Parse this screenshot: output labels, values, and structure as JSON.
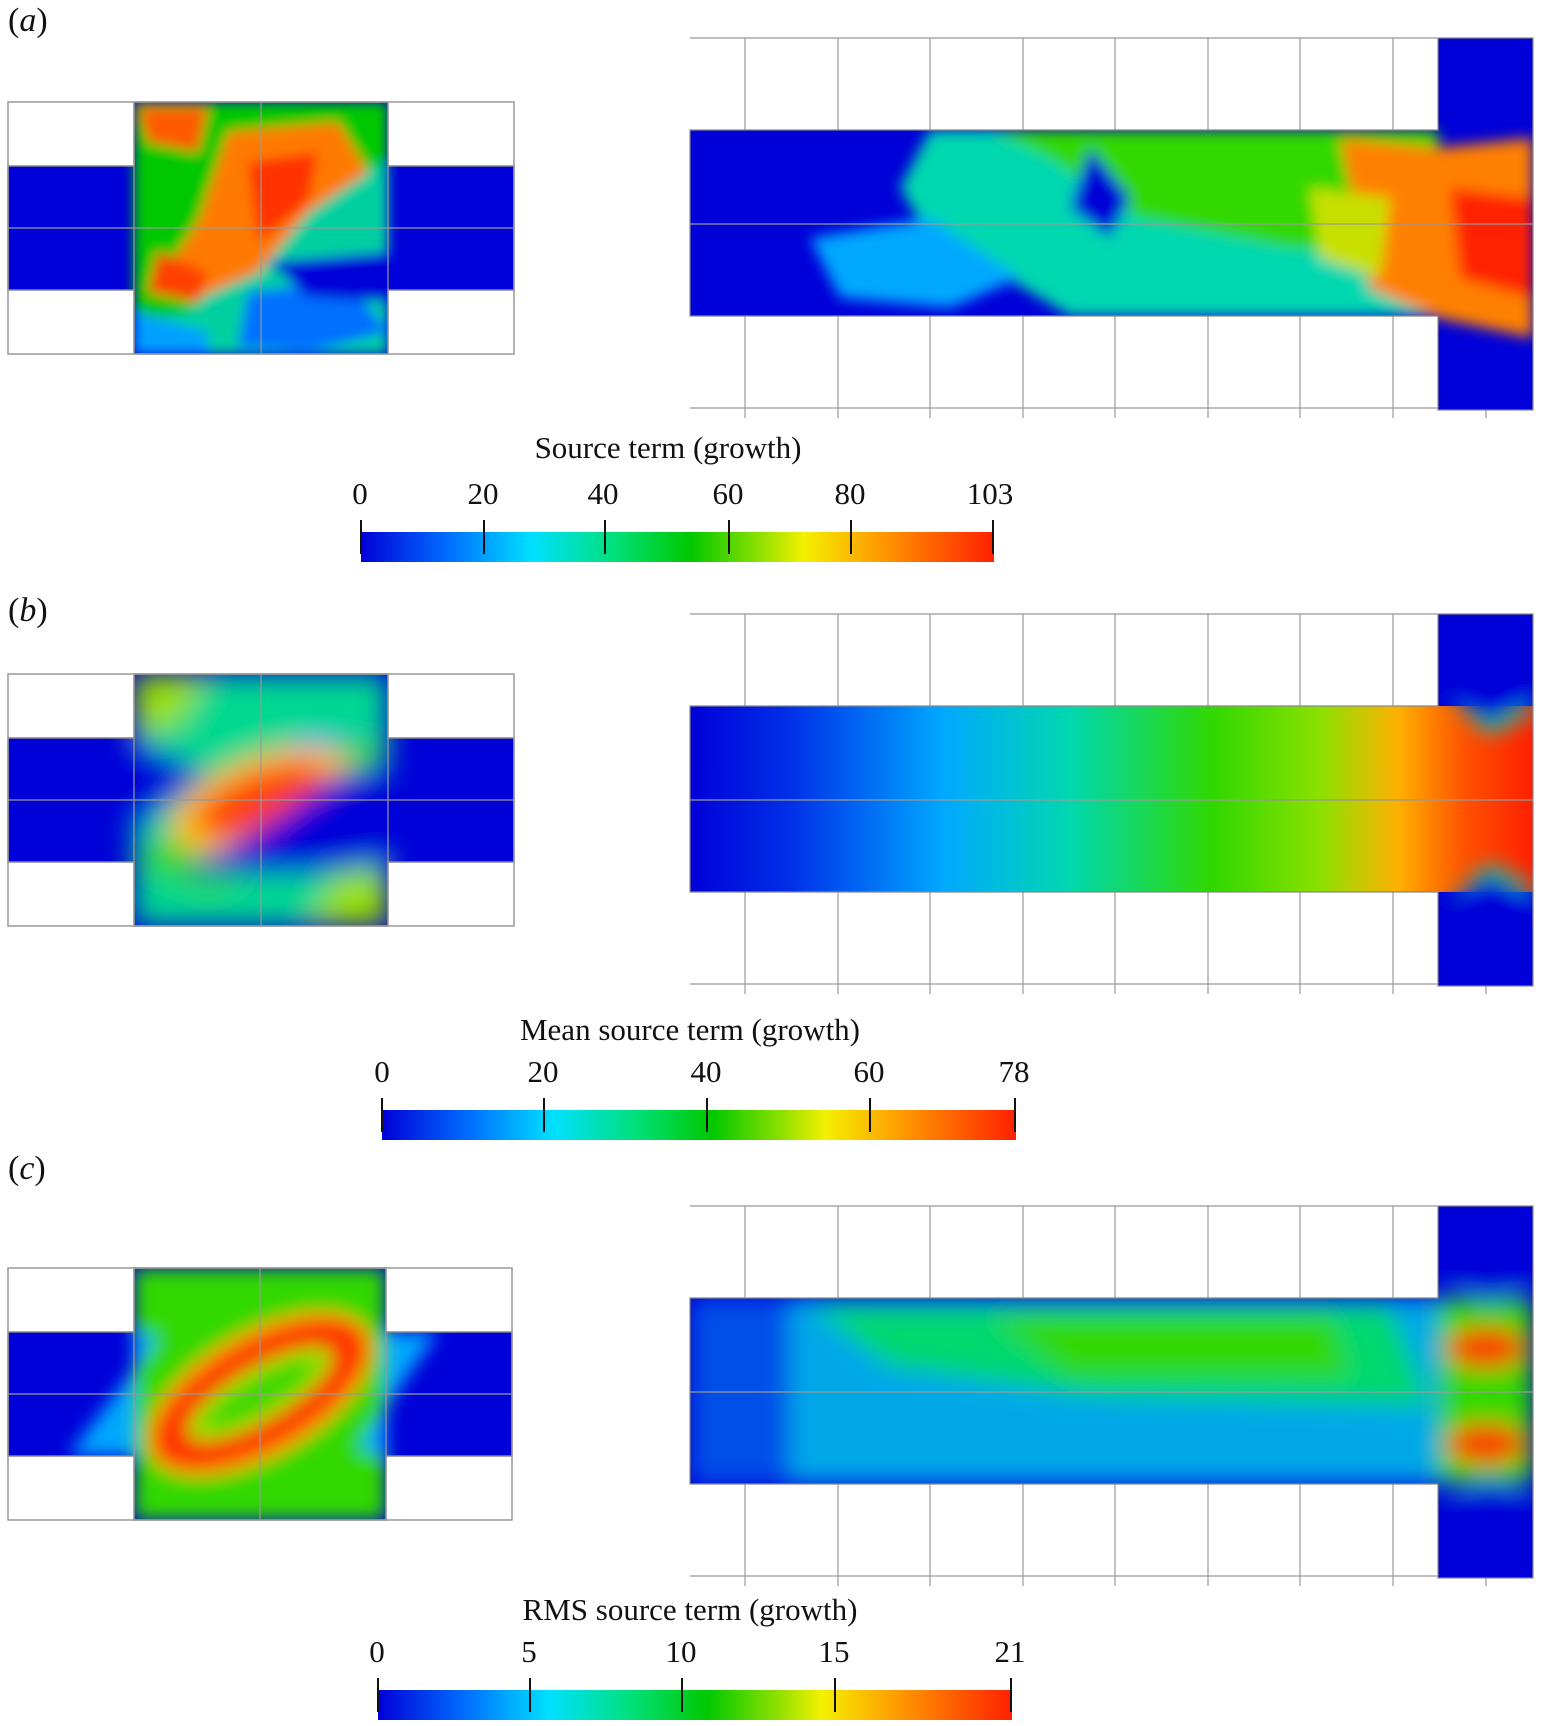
{
  "panels": [
    {
      "id": "a",
      "label": "a",
      "colorbar": {
        "title": "Source term (growth)",
        "ticks": [
          "0",
          "20",
          "40",
          "60",
          "80",
          "103"
        ]
      }
    },
    {
      "id": "b",
      "label": "b",
      "colorbar": {
        "title": "Mean source term (growth)",
        "ticks": [
          "0",
          "20",
          "40",
          "60",
          "78"
        ]
      }
    },
    {
      "id": "c",
      "label": "c",
      "colorbar": {
        "title": "RMS source term (growth)",
        "ticks": [
          "0",
          "5",
          "10",
          "15",
          "21"
        ]
      }
    }
  ],
  "colormap": [
    "#0000d8",
    "#0070ff",
    "#00e0ff",
    "#00e07a",
    "#00c800",
    "#8ee000",
    "#f4f000",
    "#ff9a00",
    "#ff2000"
  ]
}
